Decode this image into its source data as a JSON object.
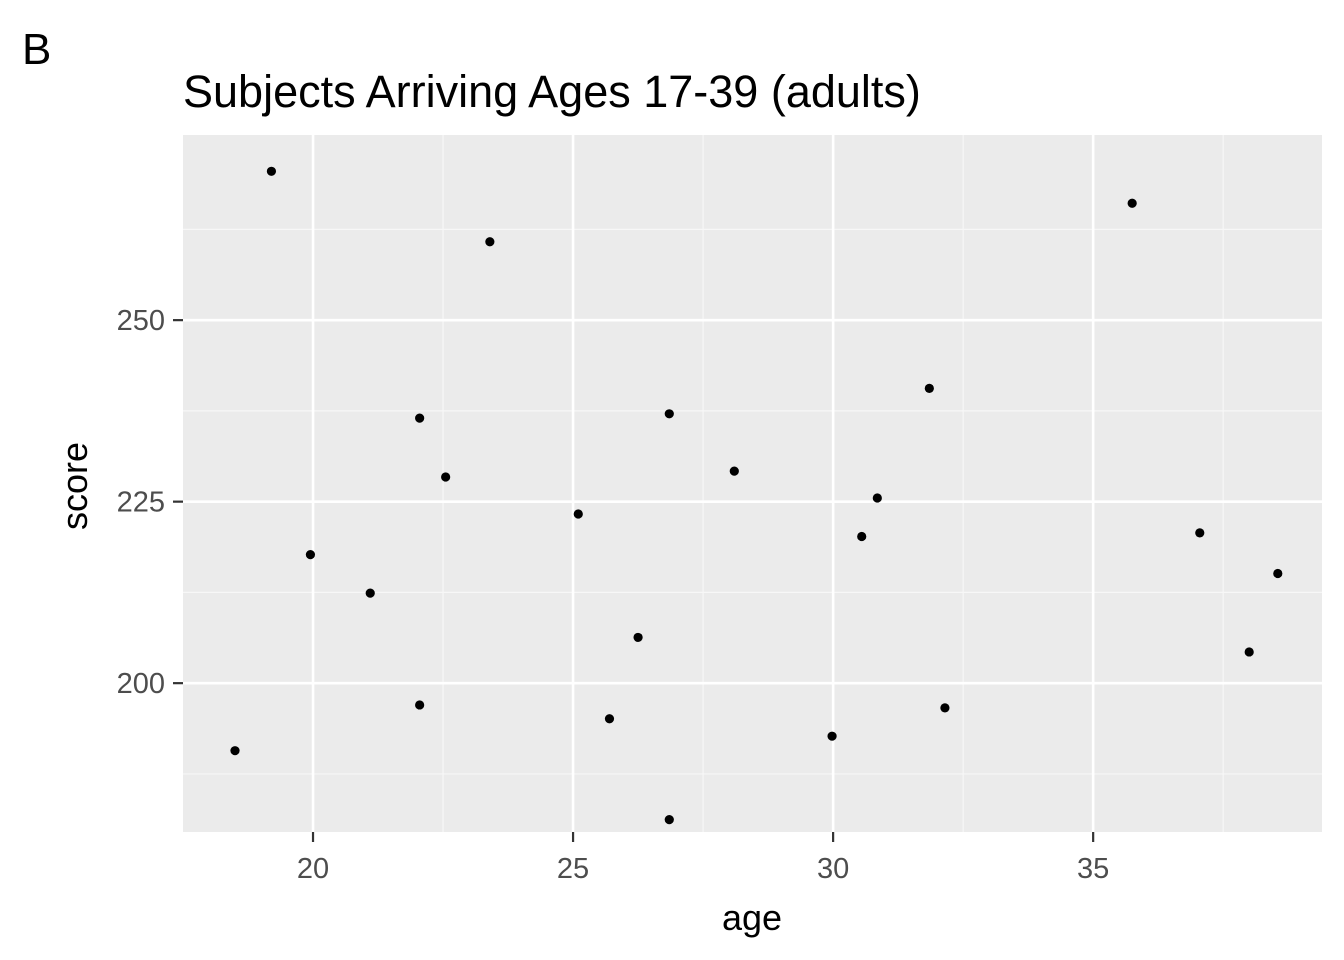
{
  "panel_tag": "B",
  "chart_data": {
    "type": "scatter",
    "title": "Subjects Arriving Ages 17-39 (adults)",
    "xlabel": "age",
    "ylabel": "score",
    "xlim": [
      17.5,
      39.4
    ],
    "ylim": [
      179.5,
      275.5
    ],
    "x_ticks": [
      20,
      25,
      30,
      35
    ],
    "x_tick_labels": [
      "20",
      "25",
      "30",
      "35"
    ],
    "y_ticks": [
      200,
      225,
      250
    ],
    "y_tick_labels": [
      "200",
      "225",
      "250"
    ],
    "x_minor": [
      22.5,
      27.5,
      32.5,
      37.5
    ],
    "y_minor": [
      187.5,
      212.5,
      237.5,
      262.5
    ],
    "grid": true,
    "legend": "none",
    "colors": {
      "panel_background": "#ebebeb",
      "grid_major": "#ffffff",
      "grid_minor": "#f7f7f7",
      "point": "#000000",
      "tick_mark": "#333333"
    },
    "points": [
      {
        "x": 18.5,
        "y": 190.7
      },
      {
        "x": 19.2,
        "y": 270.5
      },
      {
        "x": 19.95,
        "y": 217.7
      },
      {
        "x": 21.1,
        "y": 212.4
      },
      {
        "x": 22.05,
        "y": 236.5
      },
      {
        "x": 22.05,
        "y": 197.0
      },
      {
        "x": 22.55,
        "y": 228.4
      },
      {
        "x": 23.4,
        "y": 260.8
      },
      {
        "x": 25.1,
        "y": 223.3
      },
      {
        "x": 25.7,
        "y": 195.1
      },
      {
        "x": 26.25,
        "y": 206.3
      },
      {
        "x": 26.85,
        "y": 237.1
      },
      {
        "x": 26.85,
        "y": 181.2
      },
      {
        "x": 28.1,
        "y": 229.2
      },
      {
        "x": 29.98,
        "y": 192.7
      },
      {
        "x": 30.55,
        "y": 220.2
      },
      {
        "x": 30.85,
        "y": 225.5
      },
      {
        "x": 31.85,
        "y": 240.6
      },
      {
        "x": 32.15,
        "y": 196.6
      },
      {
        "x": 35.75,
        "y": 266.1
      },
      {
        "x": 37.05,
        "y": 220.7
      },
      {
        "x": 38.0,
        "y": 204.3
      },
      {
        "x": 38.55,
        "y": 215.1
      }
    ]
  }
}
